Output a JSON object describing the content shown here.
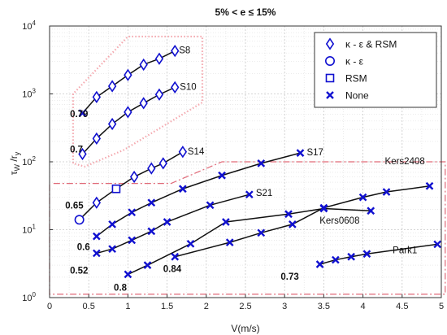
{
  "chart_data": {
    "type": "scatter",
    "title": "5% < e ≤ 15%",
    "xlabel": "V(m/s)",
    "ylabel_main": "τ",
    "ylabel_main_sub": "W",
    "ylabel_rest": " /r",
    "ylabel_rest_sub": "y",
    "xlim": [
      0,
      5
    ],
    "ylim": [
      1,
      10000
    ],
    "yscale": "log",
    "grid": true,
    "legend_position": "top-right",
    "x_ticks": [
      "0",
      "0.5",
      "1",
      "1.5",
      "2",
      "2.5",
      "3",
      "3.5",
      "4",
      "4.5",
      "5"
    ],
    "y_ticks": [
      {
        "base": "10",
        "exp": "0"
      },
      {
        "base": "10",
        "exp": "1"
      },
      {
        "base": "10",
        "exp": "2"
      },
      {
        "base": "10",
        "exp": "3"
      },
      {
        "base": "10",
        "exp": "4"
      }
    ],
    "legend": [
      {
        "marker": "diamond",
        "label": "κ - ε & RSM"
      },
      {
        "marker": "circle",
        "label": "κ - ε"
      },
      {
        "marker": "square",
        "label": "RSM"
      },
      {
        "marker": "cross",
        "label": "None"
      }
    ],
    "colors": {
      "marker": "#1010d0",
      "line": "#111111",
      "box_pink": "#f4a8ae",
      "box_red": "#e06a78"
    },
    "series": [
      {
        "name": "S8",
        "ratio": "0.79",
        "x": [
          0.42,
          0.6,
          0.8,
          1.0,
          1.2,
          1.4,
          1.6
        ],
        "y": [
          520,
          900,
          1300,
          1900,
          2700,
          3300,
          4300
        ],
        "markers": [
          "cross",
          "diamond",
          "diamond",
          "diamond",
          "diamond",
          "diamond",
          "diamond"
        ]
      },
      {
        "name": "S10",
        "ratio": "0.7",
        "x": [
          0.42,
          0.6,
          0.8,
          1.0,
          1.2,
          1.4,
          1.6
        ],
        "y": [
          130,
          220,
          360,
          540,
          730,
          980,
          1250
        ],
        "markers": [
          "diamond",
          "diamond",
          "diamond",
          "diamond",
          "diamond",
          "diamond",
          "diamond"
        ]
      },
      {
        "name": "S14",
        "ratio": "0.65",
        "x": [
          0.38,
          0.6,
          0.85,
          1.08,
          1.3,
          1.45,
          1.7
        ],
        "y": [
          14,
          25,
          40,
          60,
          80,
          95,
          140
        ],
        "markers": [
          "circle",
          "diamond",
          "square",
          "diamond",
          "diamond",
          "diamond",
          "diamond"
        ]
      },
      {
        "name": "S17",
        "ratio": "0.6",
        "x": [
          0.6,
          0.8,
          1.05,
          1.3,
          1.7,
          2.2,
          2.7,
          3.2
        ],
        "y": [
          8,
          12,
          18,
          25,
          40,
          63,
          95,
          135
        ],
        "markers": [
          "cross",
          "cross",
          "cross",
          "cross",
          "cross",
          "cross",
          "cross",
          "cross"
        ]
      },
      {
        "name": "S21",
        "ratio": "0.52",
        "x": [
          0.6,
          0.8,
          1.05,
          1.3,
          1.5,
          2.05,
          2.55
        ],
        "y": [
          4.5,
          5.2,
          7,
          9.5,
          13,
          23,
          33
        ],
        "markers": [
          "cross",
          "cross",
          "cross",
          "cross",
          "cross",
          "cross",
          "cross"
        ]
      },
      {
        "name": "Kers0608",
        "ratio": "0.8",
        "x": [
          1.0,
          1.25,
          1.8,
          2.25,
          3.05,
          3.5,
          4.1
        ],
        "y": [
          2.2,
          3,
          6.2,
          13,
          17,
          20.5,
          19
        ],
        "markers": [
          "cross",
          "cross",
          "cross",
          "cross",
          "cross",
          "cross",
          "cross"
        ]
      },
      {
        "name": "Kers2408",
        "ratio": "0.84",
        "x": [
          1.6,
          2.3,
          2.7,
          3.1,
          3.5,
          4.0,
          4.3,
          4.85
        ],
        "y": [
          4,
          6.5,
          9,
          12,
          21,
          30,
          36,
          44
        ],
        "markers": [
          "cross",
          "cross",
          "cross",
          "cross",
          "cross",
          "cross",
          "cross",
          "cross"
        ]
      },
      {
        "name": "Park1",
        "ratio": "0.73",
        "x": [
          3.45,
          3.65,
          3.85,
          4.05,
          4.95
        ],
        "y": [
          3.1,
          3.6,
          4,
          4.4,
          6.1
        ],
        "markers": [
          "cross",
          "cross",
          "cross",
          "cross",
          "cross"
        ]
      }
    ]
  }
}
